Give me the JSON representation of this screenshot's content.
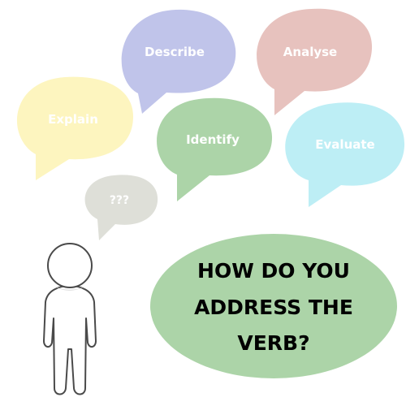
{
  "bubbles": {
    "describe": {
      "label": "Describe",
      "color": "#c0c4ea"
    },
    "analyse": {
      "label": "Analyse",
      "color": "#e7c2be"
    },
    "explain": {
      "label": "Explain",
      "color": "#fdf5bf"
    },
    "identify": {
      "label": "Identify",
      "color": "#acd4a8"
    },
    "evaluate": {
      "label": "Evaluate",
      "color": "#bdeef5"
    },
    "unknown": {
      "label": "???",
      "color": "#dedfd8"
    }
  },
  "question": {
    "line1": "HOW DO YOU",
    "line2": "ADDRESS THE",
    "line3": "VERB?",
    "color": "#acd4a8"
  },
  "figure": {
    "icon": "person-icon",
    "head_color": "#ffffff",
    "outline_color": "#4a4a4a",
    "shadow_color": "#e2e2e2"
  }
}
